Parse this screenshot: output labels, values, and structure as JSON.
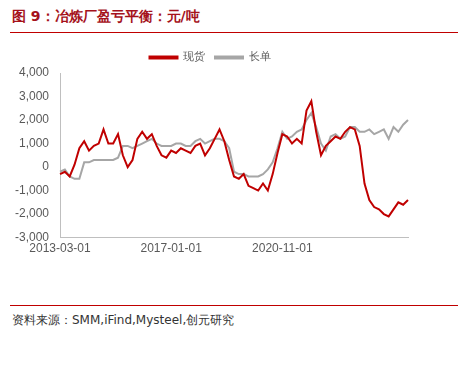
{
  "chart_data": {
    "type": "line",
    "title": "图 9：冶炼厂盈亏平衡：元/吨",
    "source": "资料来源：SMM,iFind,Mysteel,创元研究",
    "categories": [
      "2013-03-01",
      null,
      null,
      null,
      null,
      null,
      null,
      null,
      null,
      null,
      null,
      null,
      null,
      null,
      null,
      null,
      null,
      null,
      null,
      null,
      null,
      null,
      null,
      "2017-01-01",
      null,
      null,
      null,
      null,
      null,
      null,
      null,
      null,
      null,
      null,
      null,
      null,
      null,
      null,
      null,
      null,
      null,
      null,
      null,
      null,
      null,
      null,
      "2020-11-01",
      null,
      null,
      null,
      null,
      null,
      null,
      null,
      null,
      null,
      null,
      null,
      null,
      null,
      null,
      null,
      null,
      null,
      null,
      null,
      null,
      null,
      null,
      null,
      null,
      null,
      null
    ],
    "series": [
      {
        "name": "现货",
        "color": "#C00000",
        "values": [
          -300,
          -200,
          -400,
          100,
          800,
          1100,
          700,
          900,
          1000,
          1600,
          1000,
          1000,
          1400,
          500,
          0,
          300,
          1200,
          1500,
          1200,
          1400,
          900,
          500,
          400,
          700,
          600,
          800,
          700,
          600,
          900,
          1000,
          500,
          800,
          1200,
          1600,
          1100,
          300,
          -400,
          -500,
          -300,
          -800,
          -900,
          -1000,
          -700,
          -1000,
          -300,
          600,
          1400,
          1300,
          1000,
          1200,
          1000,
          2400,
          2800,
          1500,
          500,
          900,
          1100,
          1300,
          1200,
          1500,
          1700,
          1600,
          900,
          -700,
          -1400,
          -1700,
          -1800,
          -2000,
          -2100,
          -1800,
          -1500,
          -1600,
          -1400
        ]
      },
      {
        "name": "长单",
        "color": "#A6A6A6",
        "values": [
          -200,
          -100,
          -400,
          -500,
          -500,
          200,
          200,
          300,
          300,
          300,
          300,
          300,
          400,
          900,
          900,
          800,
          900,
          1000,
          1100,
          1200,
          1000,
          900,
          900,
          900,
          1000,
          1000,
          900,
          900,
          1100,
          1200,
          1000,
          1100,
          1200,
          1200,
          1100,
          800,
          -200,
          -300,
          -300,
          -400,
          -400,
          -400,
          -300,
          -100,
          200,
          800,
          1500,
          1200,
          1300,
          1500,
          1600,
          2000,
          2300,
          1700,
          1000,
          700,
          1300,
          1400,
          1200,
          1300,
          1700,
          1700,
          1500,
          1500,
          1600,
          1400,
          1500,
          1600,
          1200,
          1700,
          1500,
          1800,
          2000
        ]
      }
    ],
    "ylim": [
      -3000,
      4000
    ],
    "yticks": [
      {
        "value": -3000,
        "label": "-3,000"
      },
      {
        "value": -2000,
        "label": "-2,000"
      },
      {
        "value": -1000,
        "label": "-1,000"
      },
      0,
      {
        "value": 1000,
        "label": "1,000"
      },
      {
        "value": 2000,
        "label": "2,000"
      },
      {
        "value": 3000,
        "label": "3,000"
      },
      {
        "value": 4000,
        "label": "4,000"
      }
    ],
    "grid": false,
    "legend": "top"
  }
}
